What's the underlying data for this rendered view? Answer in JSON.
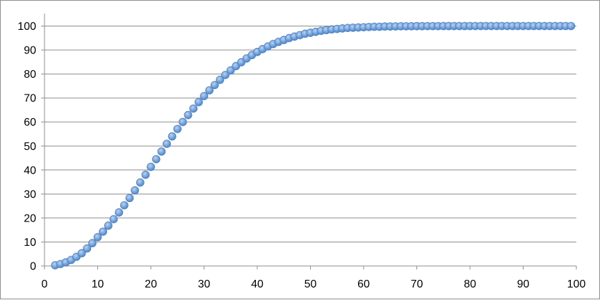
{
  "chart_data": {
    "type": "scatter",
    "title": "",
    "xlabel": "",
    "ylabel": "",
    "xlim": [
      0,
      100
    ],
    "ylim": [
      0,
      100
    ],
    "x_ticks": [
      "0",
      "10",
      "20",
      "30",
      "40",
      "50",
      "60",
      "70",
      "80",
      "90",
      "100"
    ],
    "y_ticks": [
      "0",
      "10",
      "20",
      "30",
      "40",
      "50",
      "60",
      "70",
      "80",
      "90",
      "100"
    ],
    "grid": "horizontal",
    "legend": "none",
    "marker_color": "#6fa0dc",
    "marker_edge_color": "#4f81bd",
    "gridline_color": "#8c8c8c",
    "series": [
      {
        "x": [
          2,
          3,
          4,
          5,
          6,
          7,
          8,
          9,
          10,
          11,
          12,
          13,
          14,
          15,
          16,
          17,
          18,
          19,
          20,
          21,
          22,
          23,
          24,
          25,
          26,
          27,
          28,
          29,
          30,
          31,
          32,
          33,
          34,
          35,
          36,
          37,
          38,
          39,
          40,
          41,
          42,
          43,
          44,
          45,
          46,
          47,
          48,
          49,
          50,
          51,
          52,
          53,
          54,
          55,
          56,
          57,
          58,
          59,
          60,
          61,
          62,
          63,
          64,
          65,
          66,
          67,
          68,
          69,
          70,
          71,
          72,
          73,
          74,
          75,
          76,
          77,
          78,
          79,
          80,
          81,
          82,
          83,
          84,
          85,
          86,
          87,
          88,
          89,
          90,
          91,
          92,
          93,
          94,
          95,
          96,
          97,
          98,
          99
        ],
        "y": [
          0.3,
          0.8,
          1.5,
          2.5,
          3.8,
          5.3,
          7.3,
          9.5,
          12.0,
          14.3,
          16.8,
          19.5,
          22.3,
          25.3,
          28.3,
          31.5,
          34.8,
          38.0,
          41.3,
          44.5,
          47.7,
          50.9,
          54.0,
          57.1,
          60.0,
          62.9,
          65.6,
          68.3,
          70.8,
          73.2,
          75.4,
          77.6,
          79.6,
          81.5,
          83.3,
          84.9,
          86.5,
          87.9,
          89.2,
          90.4,
          91.5,
          92.5,
          93.4,
          94.2,
          95.0,
          95.6,
          96.2,
          96.8,
          97.2,
          97.6,
          98.0,
          98.3,
          98.6,
          98.8,
          99.0,
          99.2,
          99.3,
          99.4,
          99.5,
          99.6,
          99.7,
          99.7,
          99.8,
          99.8,
          99.85,
          99.9,
          99.9,
          99.92,
          99.94,
          99.95,
          99.96,
          99.97,
          99.97,
          99.98,
          99.98,
          99.99,
          99.99,
          99.99,
          99.99,
          100,
          100,
          100,
          100,
          100,
          100,
          100,
          100,
          100,
          100,
          100,
          100,
          100,
          100,
          100,
          100,
          100,
          100,
          100
        ]
      }
    ]
  }
}
